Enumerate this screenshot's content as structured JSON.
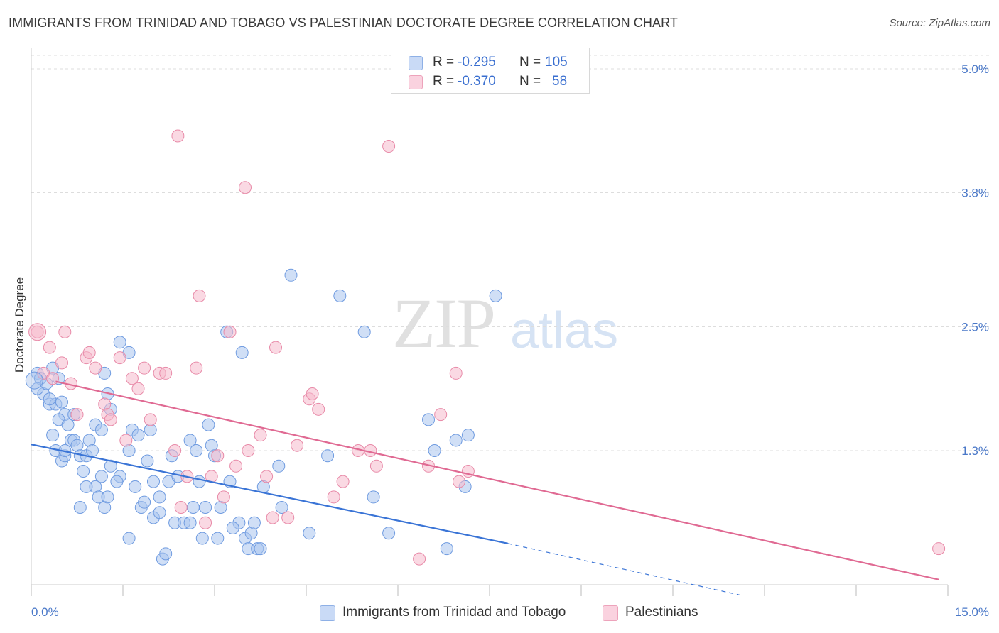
{
  "title": "IMMIGRANTS FROM TRINIDAD AND TOBAGO VS PALESTINIAN DOCTORATE DEGREE CORRELATION CHART",
  "source": "Source: ZipAtlas.com",
  "watermark": {
    "zip": "ZIP",
    "atlas": "atlas"
  },
  "legend": {
    "rows": [
      {
        "r_label": "R =",
        "r_value": "-0.295",
        "n_label": "N =",
        "n_value": "105",
        "color": "#a9c4ee"
      },
      {
        "r_label": "R =",
        "r_value": "-0.370",
        "n_label": "N =",
        "n_value": "58",
        "color": "#f5b9cc"
      }
    ]
  },
  "bottom_legend": [
    {
      "label": "Immigrants from Trinidad and Tobago",
      "color": "#a9c4ee"
    },
    {
      "label": "Palestinians",
      "color": "#f5b9cc"
    }
  ],
  "colors": {
    "blue_fill": "#a9c4ee",
    "blue_stroke": "#6f9be0",
    "blue_line": "#3a74d6",
    "pink_fill": "#f5b9cc",
    "pink_stroke": "#e88aa8",
    "pink_line": "#e06a93",
    "grid": "#dddddd",
    "tick_text": "#4a78c8"
  },
  "chart_data": {
    "type": "scatter",
    "title": "IMMIGRANTS FROM TRINIDAD AND TOBAGO VS PALESTINIAN DOCTORATE DEGREE CORRELATION CHART",
    "xlabel": "",
    "ylabel": "Doctorate Degree",
    "xlim": [
      0,
      15
    ],
    "ylim": [
      0,
      5.2
    ],
    "x_tick_labels": [
      "0.0%",
      "15.0%"
    ],
    "y_ticks": [
      1.3,
      2.5,
      3.8,
      5.0
    ],
    "y_tick_labels": [
      "1.3%",
      "2.5%",
      "3.8%",
      "5.0%"
    ],
    "grid": "horizontal dashed",
    "legend_position": "top-center",
    "series": [
      {
        "name": "Immigrants from Trinidad and Tobago",
        "R": -0.295,
        "N": 105,
        "points": [
          [
            0.1,
            2.05
          ],
          [
            0.15,
            2.0
          ],
          [
            0.2,
            1.85
          ],
          [
            0.1,
            1.9
          ],
          [
            0.25,
            1.95
          ],
          [
            0.35,
            2.1
          ],
          [
            0.45,
            2.0
          ],
          [
            0.3,
            1.75
          ],
          [
            0.4,
            1.75
          ],
          [
            0.5,
            1.77
          ],
          [
            0.55,
            1.65
          ],
          [
            0.45,
            1.6
          ],
          [
            0.6,
            1.55
          ],
          [
            0.35,
            1.45
          ],
          [
            0.4,
            1.3
          ],
          [
            0.5,
            1.2
          ],
          [
            0.55,
            1.25
          ],
          [
            0.65,
            1.4
          ],
          [
            0.7,
            1.4
          ],
          [
            0.75,
            1.35
          ],
          [
            0.8,
            1.25
          ],
          [
            0.85,
            1.1
          ],
          [
            0.9,
            1.25
          ],
          [
            0.95,
            1.4
          ],
          [
            1.0,
            1.3
          ],
          [
            0.8,
            0.75
          ],
          [
            1.05,
            0.95
          ],
          [
            1.1,
            0.85
          ],
          [
            1.2,
            0.75
          ],
          [
            1.15,
            1.05
          ],
          [
            1.25,
            0.85
          ],
          [
            1.3,
            1.15
          ],
          [
            1.2,
            2.05
          ],
          [
            1.25,
            1.85
          ],
          [
            1.3,
            1.7
          ],
          [
            1.45,
            2.35
          ],
          [
            1.6,
            2.25
          ],
          [
            1.65,
            1.5
          ],
          [
            1.75,
            1.45
          ],
          [
            1.7,
            0.95
          ],
          [
            1.8,
            0.75
          ],
          [
            1.85,
            0.8
          ],
          [
            1.95,
            1.5
          ],
          [
            2.0,
            0.65
          ],
          [
            2.1,
            0.7
          ],
          [
            2.1,
            0.85
          ],
          [
            2.15,
            0.25
          ],
          [
            2.2,
            0.3
          ],
          [
            2.25,
            1.0
          ],
          [
            2.3,
            1.25
          ],
          [
            2.35,
            0.6
          ],
          [
            2.4,
            1.05
          ],
          [
            2.5,
            0.6
          ],
          [
            2.6,
            1.4
          ],
          [
            2.65,
            0.75
          ],
          [
            2.75,
            1.0
          ],
          [
            2.8,
            0.45
          ],
          [
            2.85,
            0.75
          ],
          [
            2.9,
            1.55
          ],
          [
            2.95,
            1.35
          ],
          [
            3.0,
            1.25
          ],
          [
            3.05,
            0.45
          ],
          [
            3.1,
            0.75
          ],
          [
            3.2,
            2.45
          ],
          [
            3.25,
            1.0
          ],
          [
            3.4,
            0.6
          ],
          [
            3.45,
            2.25
          ],
          [
            3.5,
            0.45
          ],
          [
            3.55,
            0.35
          ],
          [
            3.6,
            0.5
          ],
          [
            3.65,
            0.6
          ],
          [
            3.7,
            0.35
          ],
          [
            3.75,
            0.35
          ],
          [
            3.8,
            0.95
          ],
          [
            4.05,
            1.15
          ],
          [
            4.1,
            0.75
          ],
          [
            4.25,
            3.0
          ],
          [
            4.55,
            0.5
          ],
          [
            4.85,
            1.25
          ],
          [
            5.05,
            2.8
          ],
          [
            5.45,
            2.45
          ],
          [
            5.6,
            0.85
          ],
          [
            5.85,
            0.5
          ],
          [
            6.5,
            1.6
          ],
          [
            6.6,
            1.3
          ],
          [
            6.95,
            1.4
          ],
          [
            7.1,
            0.95
          ],
          [
            7.6,
            2.8
          ],
          [
            7.15,
            1.45
          ],
          [
            6.8,
            0.35
          ],
          [
            2.6,
            0.6
          ],
          [
            1.6,
            0.45
          ],
          [
            0.9,
            0.95
          ],
          [
            1.45,
            1.05
          ],
          [
            2.0,
            1.0
          ],
          [
            1.9,
            1.2
          ],
          [
            0.55,
            1.3
          ],
          [
            1.05,
            1.55
          ],
          [
            0.7,
            1.65
          ],
          [
            1.15,
            1.5
          ],
          [
            0.3,
            1.8
          ],
          [
            1.6,
            1.3
          ],
          [
            1.4,
            1.0
          ],
          [
            2.7,
            1.3
          ],
          [
            3.3,
            0.55
          ]
        ]
      },
      {
        "name": "Palestinians",
        "R": -0.37,
        "N": 58,
        "points": [
          [
            0.1,
            2.45
          ],
          [
            0.3,
            2.3
          ],
          [
            0.2,
            2.05
          ],
          [
            0.35,
            2.0
          ],
          [
            0.5,
            2.15
          ],
          [
            0.65,
            1.95
          ],
          [
            0.55,
            2.45
          ],
          [
            0.75,
            1.65
          ],
          [
            0.9,
            2.2
          ],
          [
            0.95,
            2.25
          ],
          [
            1.05,
            2.1
          ],
          [
            1.2,
            1.75
          ],
          [
            1.25,
            1.65
          ],
          [
            1.3,
            1.6
          ],
          [
            1.45,
            2.2
          ],
          [
            1.55,
            1.4
          ],
          [
            1.65,
            2.0
          ],
          [
            1.75,
            1.9
          ],
          [
            1.85,
            2.1
          ],
          [
            1.95,
            1.6
          ],
          [
            2.1,
            2.05
          ],
          [
            2.2,
            2.05
          ],
          [
            2.35,
            1.3
          ],
          [
            2.4,
            4.35
          ],
          [
            2.45,
            0.75
          ],
          [
            2.55,
            1.05
          ],
          [
            2.7,
            2.1
          ],
          [
            2.75,
            2.8
          ],
          [
            2.85,
            0.6
          ],
          [
            2.95,
            1.05
          ],
          [
            3.05,
            1.25
          ],
          [
            3.15,
            0.85
          ],
          [
            3.25,
            2.45
          ],
          [
            3.35,
            1.15
          ],
          [
            3.5,
            3.85
          ],
          [
            3.55,
            1.3
          ],
          [
            3.75,
            1.45
          ],
          [
            3.85,
            1.05
          ],
          [
            3.95,
            0.65
          ],
          [
            4.0,
            2.3
          ],
          [
            4.2,
            0.65
          ],
          [
            4.35,
            1.35
          ],
          [
            4.55,
            1.8
          ],
          [
            4.6,
            1.85
          ],
          [
            4.7,
            1.7
          ],
          [
            4.95,
            0.85
          ],
          [
            5.1,
            1.0
          ],
          [
            5.35,
            1.3
          ],
          [
            5.55,
            1.3
          ],
          [
            5.65,
            1.15
          ],
          [
            5.85,
            4.25
          ],
          [
            6.35,
            0.25
          ],
          [
            6.5,
            1.15
          ],
          [
            6.7,
            1.65
          ],
          [
            6.95,
            2.05
          ],
          [
            7.0,
            1.0
          ],
          [
            7.15,
            1.1
          ],
          [
            14.85,
            0.35
          ]
        ]
      }
    ],
    "trend_lines": [
      {
        "series": "Immigrants from Trinidad and Tobago",
        "x0": 0,
        "y0": 1.36,
        "x1": 7.8,
        "y1": 0.4,
        "dashed_to_x": 11.6,
        "dashed_to_y": -0.1
      },
      {
        "series": "Palestinians",
        "x0": 0.4,
        "y0": 1.97,
        "x1": 14.85,
        "y1": 0.05
      }
    ]
  }
}
